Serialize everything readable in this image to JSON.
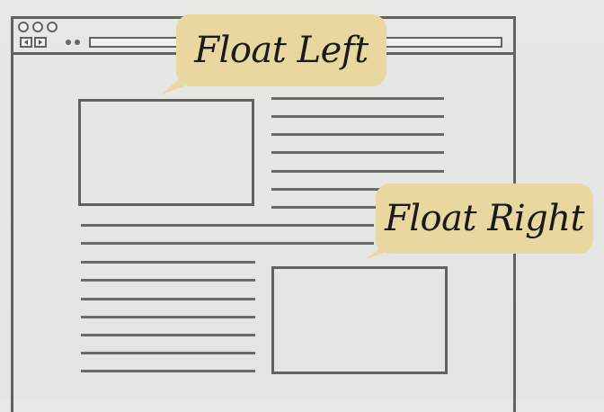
{
  "diagram": {
    "callouts": {
      "left": "Float Left",
      "right": "Float Right"
    },
    "colors": {
      "background": "#e6e6e4",
      "stroke": "#626262",
      "callout_fill": "#e8d8a0",
      "callout_text": "#1a1a1a"
    },
    "icons": [
      "back-arrow-icon",
      "forward-arrow-icon"
    ]
  }
}
